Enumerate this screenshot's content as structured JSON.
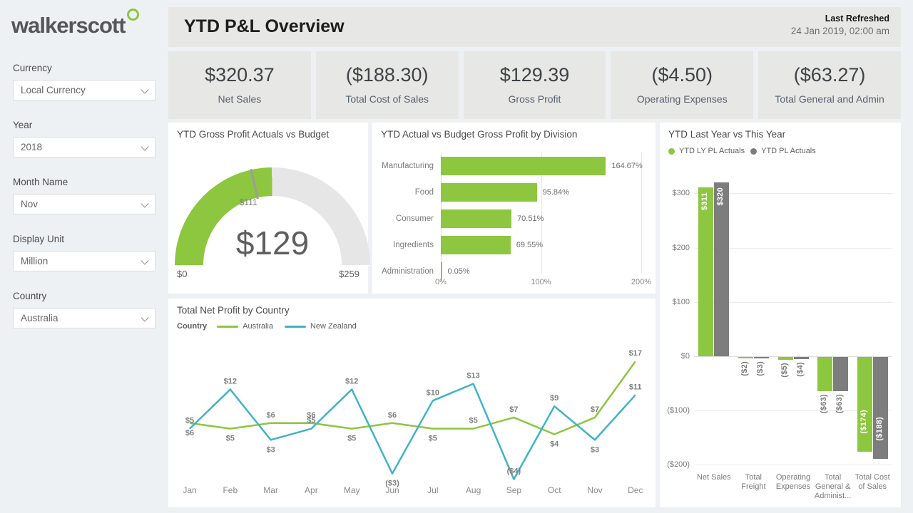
{
  "colors": {
    "green": "#8DC63F",
    "bar_gray": "#7D7D7D",
    "teal": "#3FB3C7",
    "track": "#e6e6e6",
    "page_bg": "#eef1f4",
    "card_bg": "#e7e7e5"
  },
  "logo": {
    "text": "walkerscott"
  },
  "sidebar": {
    "filters": [
      {
        "label": "Currency",
        "value": "Local Currency"
      },
      {
        "label": "Year",
        "value": "2018"
      },
      {
        "label": "Month Name",
        "value": "Nov"
      },
      {
        "label": "Display Unit",
        "value": "Million"
      },
      {
        "label": "Country",
        "value": "Australia"
      }
    ]
  },
  "header": {
    "title": "YTD P&L Overview",
    "last_refreshed_label": "Last Refreshed",
    "last_refreshed_value": "24 Jan 2019, 02:00 am"
  },
  "kpis": [
    {
      "value": "$320.37",
      "label": "Net Sales"
    },
    {
      "value": "($188.30)",
      "label": "Total Cost of Sales"
    },
    {
      "value": "$129.39",
      "label": "Gross Profit"
    },
    {
      "value": "($4.50)",
      "label": "Operating Expenses"
    },
    {
      "value": "($63.27)",
      "label": "Total General and Admin"
    }
  ],
  "chart_data": [
    {
      "type": "gauge",
      "title": "YTD Gross Profit Actuals vs Budget",
      "min": 0,
      "max": 259,
      "value": 129,
      "target": 111,
      "min_label": "$0",
      "max_label": "$259",
      "value_label": "$129",
      "target_label": "$111"
    },
    {
      "type": "bar",
      "orientation": "horizontal",
      "title": "YTD Actual vs Budget Gross Profit by Division",
      "categories": [
        "Manufacturing",
        "Food",
        "Consumer",
        "Ingredients",
        "Administration"
      ],
      "values": [
        164.67,
        95.84,
        70.51,
        69.55,
        0.05
      ],
      "value_labels": [
        "164.67%",
        "95.84%",
        "70.51%",
        "69.55%",
        "0.05%"
      ],
      "xlim": [
        0,
        200
      ],
      "xticks": [
        {
          "v": 0,
          "label": "0%"
        },
        {
          "v": 100,
          "label": "100%"
        },
        {
          "v": 200,
          "label": "200%"
        }
      ]
    },
    {
      "type": "line",
      "title": "Total Net Profit by Country",
      "legend_title": "Country",
      "x": [
        "Jan",
        "Feb",
        "Mar",
        "Apr",
        "May",
        "Jun",
        "Jul",
        "Aug",
        "Sep",
        "Oct",
        "Nov",
        "Dec"
      ],
      "series": [
        {
          "name": "Australia",
          "color_key": "green",
          "values": [
            6,
            5,
            6,
            6,
            5,
            6,
            5,
            5,
            7,
            4,
            7,
            17
          ],
          "labels": [
            "$6",
            "$5",
            "$6",
            "$6",
            "$5",
            "$6",
            "$5",
            "$5",
            "$7",
            "$4",
            "$7",
            "$17"
          ],
          "label_pos": [
            "b",
            "b",
            "a",
            "a",
            "b",
            "a",
            "b",
            "a",
            "a",
            "b",
            "a",
            "a"
          ]
        },
        {
          "name": "New Zealand",
          "color_key": "teal",
          "values": [
            5,
            12,
            3,
            5,
            12,
            -3,
            10,
            13,
            -4,
            9,
            3,
            11
          ],
          "labels": [
            "$5",
            "$12",
            "$3",
            "$5",
            "$12",
            "($3)",
            "$10",
            "$13",
            "($4)",
            "$9",
            "$3",
            "$11"
          ],
          "label_pos": [
            "a",
            "a",
            "b",
            "a",
            "a",
            "b",
            "a",
            "a",
            "a",
            "a",
            "b",
            "a"
          ]
        }
      ]
    },
    {
      "type": "column",
      "title": "YTD Last Year vs This Year",
      "categories": [
        "Net Sales",
        "Total Freight",
        "Operating Expenses",
        "Total General & Administ...",
        "Total Cost of Sales"
      ],
      "series": [
        {
          "name": "YTD LY PL Actuals",
          "color_key": "green",
          "values": [
            311,
            -2,
            -5,
            -63,
            -174
          ],
          "labels": [
            "$311",
            "($2)",
            "($5)",
            "($63)",
            "($174)"
          ],
          "label_inside": [
            true,
            false,
            false,
            false,
            true
          ]
        },
        {
          "name": "YTD PL Actuals",
          "color_key": "bar_gray",
          "values": [
            320,
            -3,
            -4,
            -63,
            -188
          ],
          "labels": [
            "$320",
            "($3)",
            "($4)",
            "($63)",
            "($188)"
          ],
          "label_inside": [
            true,
            false,
            false,
            false,
            true
          ]
        }
      ],
      "yticks": [
        {
          "v": 300,
          "label": "$300"
        },
        {
          "v": 200,
          "label": "$200"
        },
        {
          "v": 100,
          "label": "$100"
        },
        {
          "v": 0,
          "label": "$0"
        },
        {
          "v": -100,
          "label": "($100)"
        },
        {
          "v": -200,
          "label": "($200)"
        }
      ],
      "ylim": [
        -210,
        330
      ]
    }
  ]
}
